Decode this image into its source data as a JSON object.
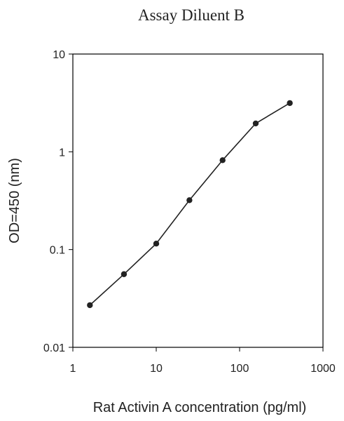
{
  "chart_data": {
    "type": "line",
    "title": "Assay Diluent B",
    "xlabel": "Rat Activin A concentration (pg/ml)",
    "ylabel": "OD=450 (nm)",
    "x_scale": "log",
    "y_scale": "log",
    "xlim": [
      1,
      1000
    ],
    "ylim": [
      0.01,
      10
    ],
    "x_ticks": [
      1,
      10,
      100,
      1000
    ],
    "x_tick_labels": [
      "1",
      "10",
      "100",
      "1000"
    ],
    "y_ticks": [
      0.01,
      0.1,
      1,
      10
    ],
    "y_tick_labels": [
      "0.01",
      "0.1",
      "1",
      "10"
    ],
    "grid": false,
    "legend": "none",
    "series": [
      {
        "x": [
          1.6,
          4.1,
          10,
          25,
          62.5,
          156,
          400
        ],
        "y": [
          0.027,
          0.056,
          0.115,
          0.32,
          0.82,
          1.95,
          3.15
        ]
      }
    ],
    "colors": {
      "line": "#222222",
      "marker": "#222222",
      "axis": "#000000"
    }
  }
}
